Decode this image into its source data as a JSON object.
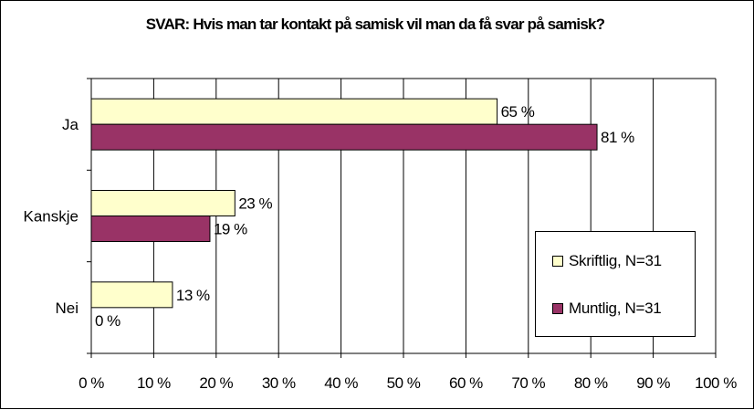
{
  "chart_data": {
    "type": "bar",
    "orientation": "horizontal",
    "title": "SVAR: Hvis man tar kontakt på samisk vil man da få svar på samisk?",
    "categories": [
      "Ja",
      "Kanskje",
      "Nei"
    ],
    "series": [
      {
        "name": "Skriftlig, N=31",
        "values": [
          65,
          23,
          13
        ],
        "labels": [
          "65 %",
          "23 %",
          "13 %"
        ],
        "color": "#FFFFCC"
      },
      {
        "name": "Muntlig, N=31",
        "values": [
          81,
          19,
          0
        ],
        "labels": [
          "81 %",
          "19 %",
          "0 %"
        ],
        "color": "#993366"
      }
    ],
    "xlim": [
      0,
      100
    ],
    "xticks": [
      0,
      10,
      20,
      30,
      40,
      50,
      60,
      70,
      80,
      90,
      100
    ],
    "xtick_labels": [
      "0 %",
      "10 %",
      "20 %",
      "30 %",
      "40 %",
      "50 %",
      "60 %",
      "70 %",
      "80 %",
      "90 %",
      "100 %"
    ],
    "grid": true,
    "legend_position": "right"
  }
}
